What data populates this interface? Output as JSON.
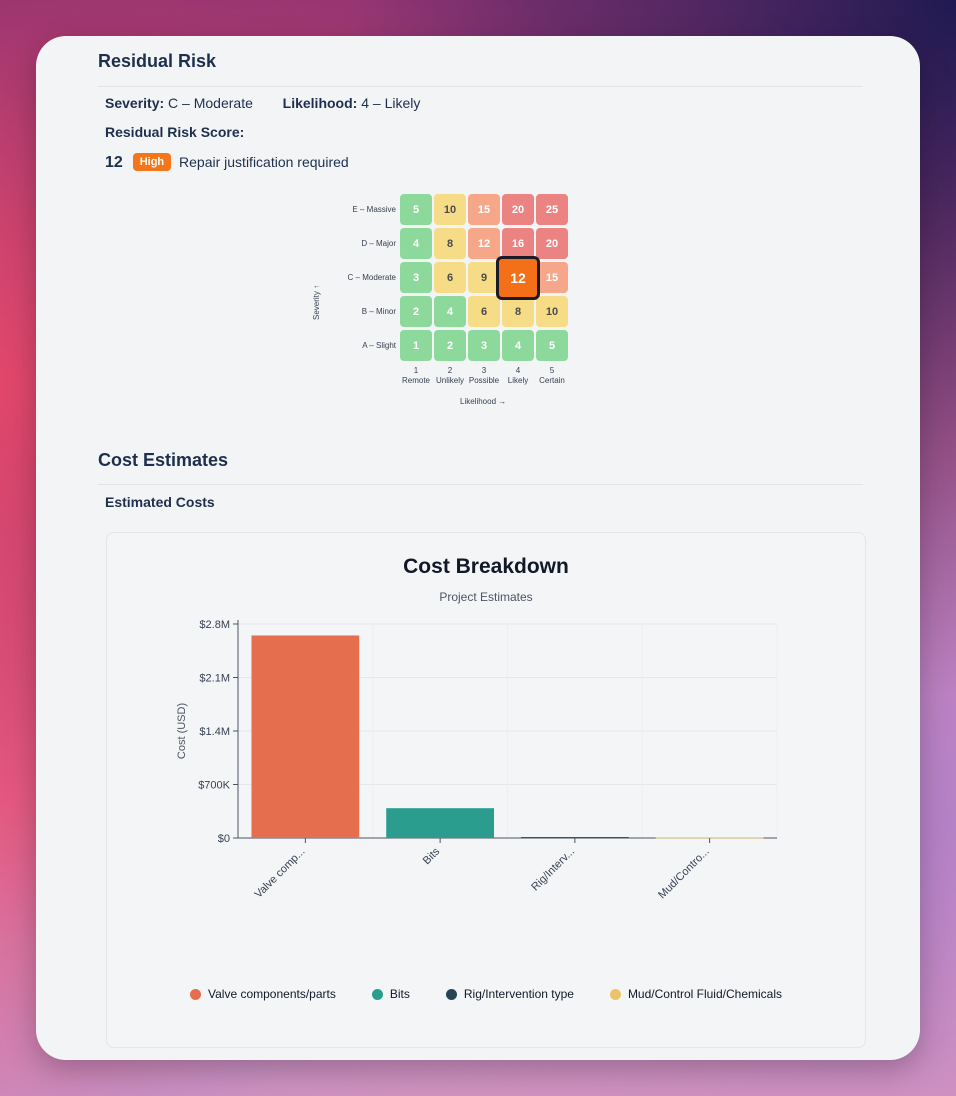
{
  "residual": {
    "title": "Residual Risk",
    "severity_label": "Severity:",
    "severity_value": "C – Moderate",
    "likelihood_label": "Likelihood:",
    "likelihood_value": "4 – Likely",
    "score_label": "Residual Risk Score:",
    "score": "12",
    "badge": "High",
    "note": "Repair justification required"
  },
  "matrix": {
    "rows": [
      "E – Massive",
      "D – Major",
      "C – Moderate",
      "B – Minor",
      "A – Slight"
    ],
    "values": [
      [
        5,
        10,
        15,
        20,
        25
      ],
      [
        4,
        8,
        12,
        16,
        20
      ],
      [
        3,
        6,
        9,
        12,
        15
      ],
      [
        2,
        4,
        6,
        8,
        10
      ],
      [
        1,
        2,
        3,
        4,
        5
      ]
    ],
    "levels": [
      [
        "green",
        "yellow",
        "orange",
        "red",
        "red"
      ],
      [
        "green",
        "yellow",
        "orange",
        "red",
        "red"
      ],
      [
        "green",
        "yellow",
        "yellow",
        "orange",
        "orange"
      ],
      [
        "green",
        "green",
        "yellow",
        "yellow",
        "yellow"
      ],
      [
        "green",
        "green",
        "green",
        "green",
        "green"
      ]
    ],
    "selected": {
      "row": 2,
      "col": 3
    },
    "cols": [
      {
        "num": "1",
        "name": "Remote"
      },
      {
        "num": "2",
        "name": "Unlikely"
      },
      {
        "num": "3",
        "name": "Possible"
      },
      {
        "num": "4",
        "name": "Likely"
      },
      {
        "num": "5",
        "name": "Certain"
      }
    ],
    "y_axis": "Severity ↑",
    "x_axis": "Likelihood →"
  },
  "cost": {
    "title": "Cost Estimates",
    "subtitle": "Estimated Costs"
  },
  "chart_data": {
    "type": "bar",
    "title": "Cost Breakdown",
    "subtitle": "Project Estimates",
    "ylabel": "Cost (USD)",
    "xlabel": "",
    "categories": [
      "Valve comp...",
      "Bits",
      "Rig/Interv...",
      "Mud/Contro..."
    ],
    "series": [
      {
        "name": "Valve components/parts",
        "value": 2650000,
        "color": "#e56e4e"
      },
      {
        "name": "Bits",
        "value": 390000,
        "color": "#2a9d8f"
      },
      {
        "name": "Rig/Intervention type",
        "value": 12000,
        "color": "#264653"
      },
      {
        "name": "Mud/Control Fluid/Chemicals",
        "value": 8000,
        "color": "#e9c46a"
      }
    ],
    "ylim": [
      0,
      2800000
    ],
    "yticks": [
      0,
      700000,
      1400000,
      2100000,
      2800000
    ],
    "ytick_labels": [
      "$0",
      "$700K",
      "$1.4M",
      "$2.1M",
      "$2.8M"
    ],
    "grid": true,
    "legend": "bottom"
  }
}
